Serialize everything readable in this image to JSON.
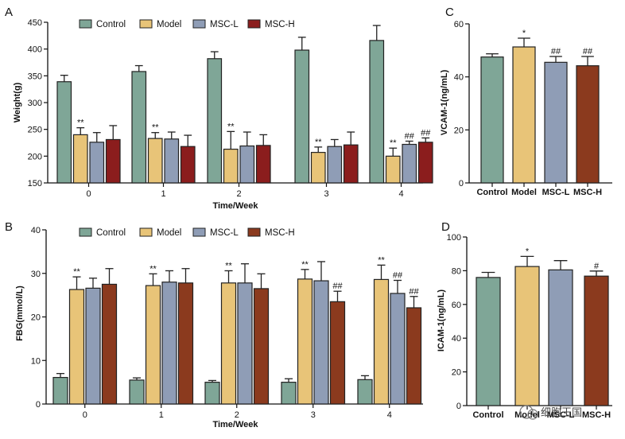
{
  "chart_data": [
    {
      "panel": "A",
      "type": "bar",
      "xlabel": "Time/Week",
      "ylabel": "Weight(g)",
      "ylim": [
        150,
        450
      ],
      "yticks": [
        150,
        200,
        250,
        300,
        350,
        400,
        450
      ],
      "categories": [
        "0",
        "1",
        "2",
        "3",
        "4"
      ],
      "legend": "top",
      "series": [
        {
          "name": "Control",
          "color": "#7fa697",
          "values": [
            339,
            358,
            382,
            398,
            416
          ],
          "errors": [
            12,
            11,
            13,
            24,
            28
          ],
          "marks": [
            "",
            "",
            "",
            "",
            ""
          ]
        },
        {
          "name": "Model",
          "color": "#e8c478",
          "values": [
            240,
            233,
            213,
            207,
            200
          ],
          "errors": [
            13,
            11,
            33,
            10,
            15
          ],
          "marks": [
            "**",
            "**",
            "**",
            "**",
            "**"
          ]
        },
        {
          "name": "MSC-L",
          "color": "#8f9db6",
          "values": [
            226,
            232,
            219,
            218,
            222
          ],
          "errors": [
            18,
            13,
            26,
            13,
            6
          ],
          "marks": [
            "",
            "",
            "",
            "",
            "##"
          ]
        },
        {
          "name": "MSC-H",
          "color": "#8b1d1d",
          "values": [
            231,
            218,
            220,
            221,
            226
          ],
          "errors": [
            26,
            21,
            20,
            24,
            8
          ],
          "marks": [
            "",
            "",
            "",
            "",
            "##"
          ]
        }
      ]
    },
    {
      "panel": "B",
      "type": "bar",
      "xlabel": "Time/Week",
      "ylabel": "FBG(mmol/L)",
      "ylim": [
        0,
        40
      ],
      "yticks": [
        0,
        10,
        20,
        30,
        40
      ],
      "categories": [
        "0",
        "1",
        "2",
        "3",
        "4"
      ],
      "legend": "top",
      "series": [
        {
          "name": "Control",
          "color": "#7fa697",
          "values": [
            6.1,
            5.5,
            5.0,
            5.0,
            5.6
          ],
          "errors": [
            0.9,
            0.5,
            0.4,
            0.8,
            0.9
          ],
          "marks": [
            "",
            "",
            "",
            "",
            ""
          ]
        },
        {
          "name": "Model",
          "color": "#e8c478",
          "values": [
            26.3,
            27.2,
            27.8,
            28.7,
            28.6
          ],
          "errors": [
            2.9,
            2.7,
            2.8,
            2.2,
            3.3
          ],
          "marks": [
            "**",
            "**",
            "**",
            "**",
            "**"
          ]
        },
        {
          "name": "MSC-L",
          "color": "#8f9db6",
          "values": [
            26.6,
            28.0,
            27.8,
            28.3,
            25.4
          ],
          "errors": [
            2.3,
            2.6,
            4.4,
            4.4,
            3.0
          ],
          "marks": [
            "",
            "",
            "",
            "",
            "##"
          ]
        },
        {
          "name": "MSC-H",
          "color": "#8b3a1e",
          "values": [
            27.5,
            27.8,
            26.5,
            23.5,
            22.1
          ],
          "errors": [
            3.6,
            3.3,
            3.4,
            2.4,
            2.6
          ],
          "marks": [
            "",
            "",
            "",
            "##",
            "##"
          ]
        }
      ]
    },
    {
      "panel": "C",
      "type": "bar",
      "xlabel": "",
      "ylabel": "VCAM-1(ng/mL)",
      "ylim": [
        0,
        60
      ],
      "yticks": [
        0,
        20,
        40,
        60
      ],
      "categories": [
        "Control",
        "Model",
        "MSC-L",
        "MSC-H"
      ],
      "colors": [
        "#7fa697",
        "#e8c478",
        "#8f9db6",
        "#8b3a1e"
      ],
      "values": [
        47.5,
        51.3,
        45.5,
        44.2
      ],
      "errors": [
        1.2,
        3.3,
        2.2,
        3.5
      ],
      "marks": [
        "",
        "*",
        "##",
        "##"
      ]
    },
    {
      "panel": "D",
      "type": "bar",
      "xlabel": "",
      "ylabel": "ICAM-1(ng/mL)",
      "ylim": [
        0,
        100
      ],
      "yticks": [
        0,
        20,
        40,
        60,
        80,
        100
      ],
      "categories": [
        "Control",
        "Model",
        "MSC-L",
        "MSC-H"
      ],
      "colors": [
        "#7fa697",
        "#e8c478",
        "#8f9db6",
        "#8b3a1e"
      ],
      "values": [
        76.0,
        82.5,
        80.5,
        76.8
      ],
      "errors": [
        3.0,
        6.0,
        5.5,
        3.0
      ],
      "marks": [
        "",
        "*",
        "",
        "#"
      ]
    }
  ],
  "watermark": "细胞王国"
}
